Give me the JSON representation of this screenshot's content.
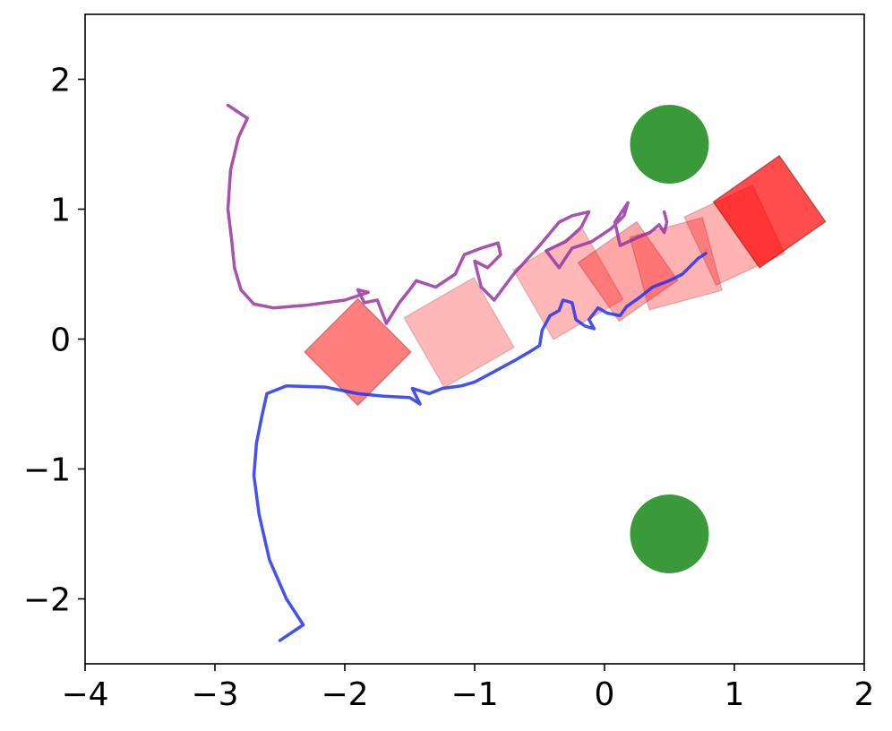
{
  "chart_data": {
    "type": "scatter",
    "title": "",
    "xlabel": "",
    "ylabel": "",
    "xlim": [
      -4,
      2
    ],
    "ylim": [
      -2.5,
      2.5
    ],
    "grid": false,
    "legend": "none",
    "xticks": [
      {
        "value": -4,
        "label": "−4"
      },
      {
        "value": -3,
        "label": "−3"
      },
      {
        "value": -2,
        "label": "−2"
      },
      {
        "value": -1,
        "label": "−1"
      },
      {
        "value": 0,
        "label": "0"
      },
      {
        "value": 1,
        "label": "1"
      },
      {
        "value": 2,
        "label": "2"
      }
    ],
    "yticks": [
      {
        "value": -2,
        "label": "−2"
      },
      {
        "value": -1,
        "label": "−1"
      },
      {
        "value": 0,
        "label": "0"
      },
      {
        "value": 1,
        "label": "1"
      },
      {
        "value": 2,
        "label": "2"
      }
    ],
    "circles": [
      {
        "x": 0.5,
        "y": 1.5,
        "r": 0.3,
        "color": "#3a9a3a"
      },
      {
        "x": 0.5,
        "y": -1.5,
        "r": 0.3,
        "color": "#3a9a3a"
      }
    ],
    "boxes": [
      {
        "x": -1.9,
        "y": -0.1,
        "size": 0.58,
        "angle": 45,
        "opacity": 0.5
      },
      {
        "x": -1.12,
        "y": 0.05,
        "size": 0.62,
        "angle": 30,
        "opacity": 0.28
      },
      {
        "x": -0.28,
        "y": 0.42,
        "size": 0.62,
        "angle": 30,
        "opacity": 0.28
      },
      {
        "x": 0.18,
        "y": 0.52,
        "size": 0.55,
        "angle": 35,
        "opacity": 0.35
      },
      {
        "x": 0.55,
        "y": 0.58,
        "size": 0.58,
        "angle": 15,
        "opacity": 0.3
      },
      {
        "x": 1.0,
        "y": 0.8,
        "size": 0.58,
        "angle": 25,
        "opacity": 0.3
      },
      {
        "x": 1.27,
        "y": 0.98,
        "size": 0.62,
        "angle": 35,
        "opacity": 0.7
      }
    ],
    "series": [
      {
        "color": "#9933a0",
        "points": [
          [
            -2.9,
            1.8
          ],
          [
            -2.75,
            1.7
          ],
          [
            -2.82,
            1.55
          ],
          [
            -2.88,
            1.3
          ],
          [
            -2.9,
            1.0
          ],
          [
            -2.87,
            0.75
          ],
          [
            -2.85,
            0.55
          ],
          [
            -2.8,
            0.38
          ],
          [
            -2.7,
            0.27
          ],
          [
            -2.55,
            0.24
          ],
          [
            -2.3,
            0.26
          ],
          [
            -2.0,
            0.3
          ],
          [
            -1.82,
            0.36
          ],
          [
            -1.9,
            0.38
          ],
          [
            -1.85,
            0.28
          ],
          [
            -1.75,
            0.3
          ],
          [
            -1.68,
            0.12
          ],
          [
            -1.58,
            0.28
          ],
          [
            -1.5,
            0.38
          ],
          [
            -1.45,
            0.45
          ],
          [
            -1.3,
            0.4
          ],
          [
            -1.15,
            0.5
          ],
          [
            -1.08,
            0.65
          ],
          [
            -0.95,
            0.7
          ],
          [
            -0.82,
            0.74
          ],
          [
            -0.8,
            0.65
          ],
          [
            -0.9,
            0.55
          ],
          [
            -1.0,
            0.6
          ],
          [
            -0.95,
            0.4
          ],
          [
            -0.85,
            0.3
          ],
          [
            -0.7,
            0.5
          ],
          [
            -0.5,
            0.72
          ],
          [
            -0.35,
            0.9
          ],
          [
            -0.25,
            0.95
          ],
          [
            -0.12,
            0.98
          ],
          [
            -0.18,
            0.86
          ],
          [
            -0.3,
            0.75
          ],
          [
            -0.45,
            0.68
          ],
          [
            -0.35,
            0.55
          ],
          [
            -0.25,
            0.7
          ],
          [
            -0.1,
            0.75
          ],
          [
            0.05,
            0.85
          ],
          [
            0.15,
            0.95
          ],
          [
            0.18,
            1.05
          ],
          [
            0.08,
            0.9
          ],
          [
            0.12,
            0.72
          ],
          [
            0.25,
            0.78
          ],
          [
            0.35,
            0.82
          ],
          [
            0.42,
            0.88
          ],
          [
            0.46,
            0.82
          ],
          [
            0.48,
            0.9
          ],
          [
            0.46,
            0.98
          ]
        ]
      },
      {
        "color": "#2233ee",
        "points": [
          [
            -2.5,
            -2.32
          ],
          [
            -2.32,
            -2.2
          ],
          [
            -2.45,
            -2.0
          ],
          [
            -2.58,
            -1.7
          ],
          [
            -2.66,
            -1.35
          ],
          [
            -2.7,
            -1.05
          ],
          [
            -2.68,
            -0.8
          ],
          [
            -2.64,
            -0.6
          ],
          [
            -2.6,
            -0.42
          ],
          [
            -2.45,
            -0.36
          ],
          [
            -2.15,
            -0.37
          ],
          [
            -1.9,
            -0.42
          ],
          [
            -1.7,
            -0.44
          ],
          [
            -1.5,
            -0.45
          ],
          [
            -1.42,
            -0.5
          ],
          [
            -1.48,
            -0.38
          ],
          [
            -1.35,
            -0.42
          ],
          [
            -1.25,
            -0.38
          ],
          [
            -1.1,
            -0.36
          ],
          [
            -1.0,
            -0.33
          ],
          [
            -0.85,
            -0.25
          ],
          [
            -0.7,
            -0.17
          ],
          [
            -0.58,
            -0.1
          ],
          [
            -0.5,
            -0.05
          ],
          [
            -0.48,
            0.07
          ],
          [
            -0.42,
            0.18
          ],
          [
            -0.35,
            0.22
          ],
          [
            -0.32,
            0.3
          ],
          [
            -0.25,
            0.28
          ],
          [
            -0.22,
            0.15
          ],
          [
            -0.15,
            0.1
          ],
          [
            -0.08,
            0.08
          ],
          [
            -0.12,
            0.15
          ],
          [
            -0.05,
            0.24
          ],
          [
            0.02,
            0.2
          ],
          [
            0.12,
            0.18
          ],
          [
            0.17,
            0.25
          ],
          [
            0.27,
            0.32
          ],
          [
            0.37,
            0.4
          ],
          [
            0.5,
            0.45
          ],
          [
            0.6,
            0.5
          ],
          [
            0.72,
            0.62
          ],
          [
            0.78,
            0.66
          ]
        ]
      }
    ]
  }
}
